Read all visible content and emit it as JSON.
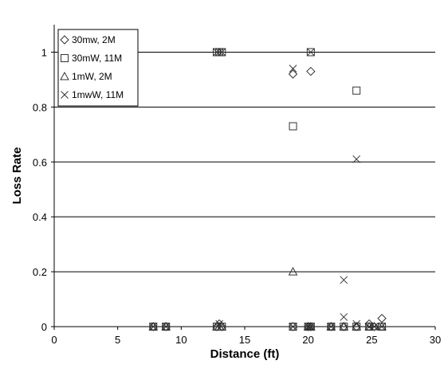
{
  "chart_data": {
    "type": "scatter",
    "xlabel": "Distance (ft)",
    "ylabel": "Loss Rate",
    "xlim": [
      0,
      30
    ],
    "ylim": [
      0,
      1.1
    ],
    "x_ticks": [
      0,
      5,
      10,
      15,
      20,
      25,
      30
    ],
    "y_ticks": [
      0,
      0.2,
      0.4,
      0.6,
      0.8,
      1
    ],
    "x_tick_labels": [
      "0",
      "5",
      "10",
      "15",
      "20",
      "25",
      "30"
    ],
    "y_tick_labels": [
      "0",
      "0.2",
      "0.4",
      "0.6",
      "0.8",
      "1"
    ],
    "grid": "horizontal",
    "legend_position": "top-left",
    "series": [
      {
        "name": "30mw, 2M",
        "marker": "diamond",
        "points": [
          [
            7.8,
            0
          ],
          [
            8.8,
            0
          ],
          [
            12.8,
            0
          ],
          [
            13.0,
            0.01
          ],
          [
            13.2,
            0
          ],
          [
            18.8,
            0.92
          ],
          [
            18.8,
            0
          ],
          [
            20.0,
            0
          ],
          [
            20.2,
            0.93
          ],
          [
            20.2,
            0
          ],
          [
            21.8,
            0
          ],
          [
            22.8,
            0
          ],
          [
            23.8,
            0
          ],
          [
            24.8,
            0.01
          ],
          [
            25.2,
            0
          ],
          [
            25.8,
            0.03
          ]
        ]
      },
      {
        "name": "30mW, 11M",
        "marker": "square",
        "points": [
          [
            7.8,
            0
          ],
          [
            8.8,
            0
          ],
          [
            12.8,
            1
          ],
          [
            13.0,
            1
          ],
          [
            13.2,
            1
          ],
          [
            12.8,
            0
          ],
          [
            13.2,
            0
          ],
          [
            18.8,
            0.73
          ],
          [
            18.8,
            0
          ],
          [
            20.2,
            1
          ],
          [
            20.0,
            0
          ],
          [
            20.2,
            0
          ],
          [
            21.8,
            0
          ],
          [
            22.8,
            0
          ],
          [
            23.8,
            0.86
          ],
          [
            23.8,
            0
          ],
          [
            24.8,
            0
          ],
          [
            25.8,
            0
          ]
        ]
      },
      {
        "name": "1mW, 2M",
        "marker": "triangle",
        "points": [
          [
            7.8,
            0
          ],
          [
            8.8,
            0
          ],
          [
            12.8,
            0
          ],
          [
            13.0,
            0
          ],
          [
            13.2,
            0
          ],
          [
            18.8,
            0.2
          ],
          [
            20.0,
            0
          ],
          [
            20.2,
            0
          ],
          [
            21.8,
            0
          ],
          [
            22.8,
            0
          ],
          [
            23.8,
            0
          ],
          [
            24.8,
            0
          ],
          [
            25.2,
            0
          ],
          [
            25.8,
            0
          ]
        ]
      },
      {
        "name": "1mwW, 11M",
        "marker": "x",
        "points": [
          [
            7.8,
            0
          ],
          [
            8.8,
            0
          ],
          [
            12.8,
            1
          ],
          [
            13.0,
            1
          ],
          [
            13.2,
            1
          ],
          [
            13.0,
            0.01
          ],
          [
            18.8,
            0.94
          ],
          [
            18.8,
            0
          ],
          [
            20.2,
            1
          ],
          [
            20.0,
            0
          ],
          [
            20.2,
            0
          ],
          [
            21.8,
            0
          ],
          [
            22.8,
            0.17
          ],
          [
            22.8,
            0.035
          ],
          [
            23.8,
            0.61
          ],
          [
            23.8,
            0.01
          ],
          [
            24.8,
            0
          ],
          [
            25.2,
            0
          ],
          [
            25.8,
            0
          ]
        ]
      }
    ]
  }
}
